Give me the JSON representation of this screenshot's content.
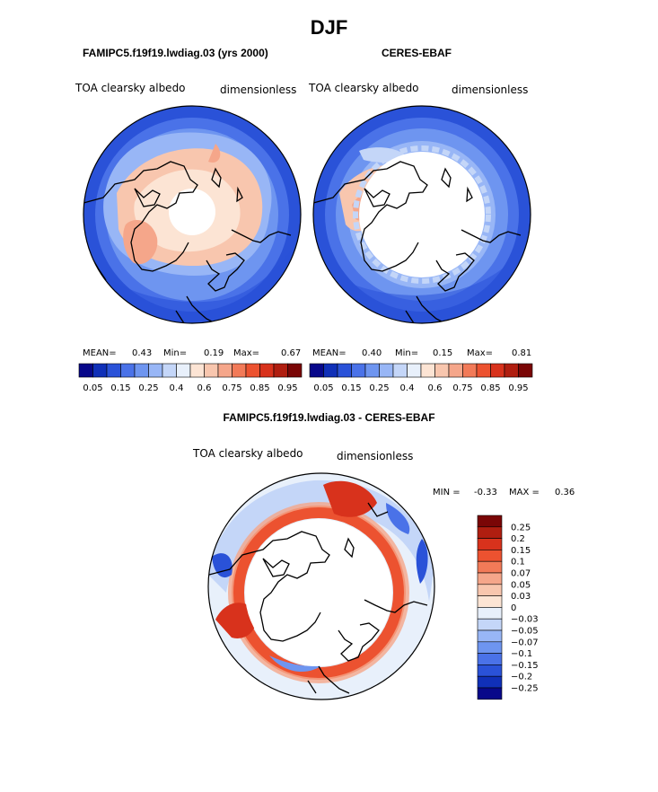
{
  "page": {
    "title": "DJF"
  },
  "panels": [
    {
      "model": "FAMIPC5.f19f19.lwdiag.03 (yrs 2000)",
      "variable": "TOA clearsky albedo",
      "units": "dimensionless",
      "mean_label": "MEAN=",
      "mean_value": "0.43",
      "min_label": "Min=",
      "min_value": "0.19",
      "max_label": "Max=",
      "max_value": "0.67"
    },
    {
      "model": "CERES-EBAF",
      "variable": "TOA clearsky albedo",
      "units": "dimensionless",
      "mean_label": "MEAN=",
      "mean_value": "0.40",
      "min_label": "Min=",
      "min_value": "0.15",
      "max_label": "Max=",
      "max_value": "0.81"
    }
  ],
  "diff": {
    "title": "FAMIPC5.f19f19.lwdiag.03 - CERES-EBAF",
    "variable": "TOA clearsky albedo",
    "units": "dimensionless",
    "min_label": "MIN =",
    "min_value": "-0.33",
    "max_label": "MAX =",
    "max_value": "0.36"
  },
  "abs_colorbar": {
    "colors": [
      "#08088a",
      "#1030b8",
      "#2a52d8",
      "#4a72e8",
      "#6e95f0",
      "#98b6f6",
      "#c4d6f8",
      "#e8f0fb",
      "#fce4d4",
      "#f8c6ae",
      "#f5a68a",
      "#f27a58",
      "#ec5230",
      "#d8321c",
      "#b01e10",
      "#7a0606"
    ],
    "ticks": [
      "0.05",
      "0.15",
      "0.25",
      "0.4",
      "0.6",
      "0.75",
      "0.85",
      "0.95"
    ]
  },
  "diff_colorbar": {
    "colors": [
      "#7a0606",
      "#b01e10",
      "#d8321c",
      "#ec5230",
      "#f27a58",
      "#f5a68a",
      "#f8c6ae",
      "#fce4d4",
      "#e8f0fb",
      "#c4d6f8",
      "#98b6f6",
      "#6e95f0",
      "#4a72e8",
      "#2a52d8",
      "#1030b8",
      "#08088a"
    ],
    "ticks": [
      "0.25",
      "0.2",
      "0.15",
      "0.1",
      "0.07",
      "0.05",
      "0.03",
      "0",
      "−0.03",
      "−0.05",
      "−0.07",
      "−0.1",
      "−0.15",
      "−0.2",
      "−0.25"
    ]
  },
  "chart_data": [
    {
      "type": "heatmap",
      "projection": "north polar stereographic",
      "title": "FAMIPC5.f19f19.lwdiag.03 (yrs 2000)",
      "season": "DJF",
      "variable": "TOA clearsky albedo",
      "units": "dimensionless",
      "mean": 0.43,
      "min": 0.19,
      "max": 0.67,
      "levels": [
        0.05,
        0.1,
        0.15,
        0.2,
        0.25,
        0.3,
        0.4,
        0.5,
        0.6,
        0.7,
        0.75,
        0.8,
        0.85,
        0.9,
        0.95
      ]
    },
    {
      "type": "heatmap",
      "projection": "north polar stereographic",
      "title": "CERES-EBAF",
      "season": "DJF",
      "variable": "TOA clearsky albedo",
      "units": "dimensionless",
      "mean": 0.4,
      "min": 0.15,
      "max": 0.81,
      "levels": [
        0.05,
        0.1,
        0.15,
        0.2,
        0.25,
        0.3,
        0.4,
        0.5,
        0.6,
        0.7,
        0.75,
        0.8,
        0.85,
        0.9,
        0.95
      ]
    },
    {
      "type": "heatmap",
      "projection": "north polar stereographic",
      "title": "FAMIPC5.f19f19.lwdiag.03 - CERES-EBAF",
      "season": "DJF",
      "variable": "TOA clearsky albedo",
      "units": "dimensionless",
      "min": -0.33,
      "max": 0.36,
      "levels": [
        -0.25,
        -0.2,
        -0.15,
        -0.1,
        -0.07,
        -0.05,
        -0.03,
        0,
        0.03,
        0.05,
        0.07,
        0.1,
        0.15,
        0.2,
        0.25
      ]
    }
  ]
}
